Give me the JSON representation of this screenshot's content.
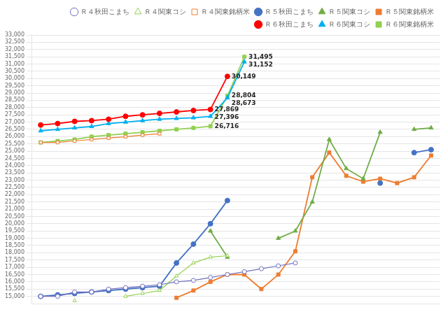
{
  "chart_data": {
    "type": "line",
    "x": [
      0,
      1,
      2,
      3,
      4,
      5,
      6,
      7,
      8,
      9,
      10,
      11,
      12,
      13,
      14,
      15,
      16,
      17,
      18,
      19,
      20,
      21,
      22,
      23
    ],
    "xlim": [
      -0.5,
      23.5
    ],
    "xticks": [],
    "ylim": [
      14500,
      33000
    ],
    "yticks": [
      {
        "value": 15000,
        "label": "15,000"
      },
      {
        "value": 15500,
        "label": "15,500"
      },
      {
        "value": 16000,
        "label": "16,000"
      },
      {
        "value": 16500,
        "label": "16,500"
      },
      {
        "value": 17000,
        "label": "17,000"
      },
      {
        "value": 17500,
        "label": "17,500"
      },
      {
        "value": 18000,
        "label": "18,000"
      },
      {
        "value": 18500,
        "label": "18,500"
      },
      {
        "value": 19000,
        "label": "19,000"
      },
      {
        "value": 19500,
        "label": "19,500"
      },
      {
        "value": 20000,
        "label": "20,000"
      },
      {
        "value": 20500,
        "label": "20,500"
      },
      {
        "value": 21000,
        "label": "21,000"
      },
      {
        "value": 21500,
        "label": "21,500"
      },
      {
        "value": 22000,
        "label": "22,000"
      },
      {
        "value": 22500,
        "label": "22,500"
      },
      {
        "value": 23000,
        "label": "23,000"
      },
      {
        "value": 23500,
        "label": "23,500"
      },
      {
        "value": 24000,
        "label": "24,000"
      },
      {
        "value": 24500,
        "label": "24,500"
      },
      {
        "value": 25000,
        "label": "25,000"
      },
      {
        "value": 25500,
        "label": "25,500"
      },
      {
        "value": 26000,
        "label": "26,000"
      },
      {
        "value": 26500,
        "label": "26,500"
      },
      {
        "value": 27000,
        "label": "27,000"
      },
      {
        "value": 27500,
        "label": "27,500"
      },
      {
        "value": 28000,
        "label": "28,000"
      },
      {
        "value": 28500,
        "label": "28,500"
      },
      {
        "value": 29000,
        "label": "29,000"
      },
      {
        "value": 29500,
        "label": "29,500"
      },
      {
        "value": 30000,
        "label": "30,000"
      },
      {
        "value": 30500,
        "label": "30,500"
      },
      {
        "value": 31000,
        "label": "31,000"
      },
      {
        "value": 31500,
        "label": "31,500"
      },
      {
        "value": 32000,
        "label": "32,000"
      },
      {
        "value": 32500,
        "label": "32,500"
      },
      {
        "value": 33000,
        "label": "33,000"
      }
    ],
    "tick_labels": "y",
    "grid": true,
    "legend": "upper right",
    "series": [
      {
        "name": "Ｒ４秋田こまち",
        "color": "#7070C0",
        "marker": "circle-open",
        "values": [
          15000,
          15000,
          15300,
          15300,
          15500,
          15600,
          15700,
          15800,
          16000,
          16100,
          16300,
          16500,
          16700,
          16900,
          17100,
          17300,
          null,
          null,
          null,
          null,
          null,
          null,
          null,
          null
        ]
      },
      {
        "name": "Ｒ４関東コシ",
        "color": "#92D050",
        "marker": "triangle-open",
        "values": [
          null,
          null,
          14700,
          null,
          null,
          15000,
          15200,
          15400,
          16400,
          17300,
          17700,
          17800,
          null,
          null,
          null,
          null,
          null,
          null,
          null,
          null,
          null,
          null,
          null,
          null
        ]
      },
      {
        "name": "Ｒ４関東銘柄米",
        "color": "#ED7D31",
        "marker": "square-open",
        "values": [
          25600,
          25600,
          25700,
          25800,
          25900,
          26000,
          26100,
          26200,
          null,
          null,
          null,
          null,
          null,
          null,
          null,
          null,
          null,
          null,
          null,
          null,
          null,
          null,
          null,
          null
        ]
      },
      {
        "name": "Ｒ５秋田こまち",
        "color": "#4472C4",
        "marker": "circle",
        "values": [
          15000,
          15100,
          15200,
          15300,
          15400,
          15500,
          15600,
          15700,
          17300,
          18600,
          20000,
          21600,
          null,
          null,
          null,
          null,
          null,
          null,
          null,
          null,
          22800,
          null,
          24900,
          25100
        ]
      },
      {
        "name": "Ｒ５関東コシ",
        "color": "#70AD47",
        "marker": "triangle",
        "values": [
          null,
          null,
          null,
          null,
          null,
          null,
          null,
          null,
          null,
          null,
          19500,
          17700,
          null,
          null,
          19000,
          19500,
          21500,
          25800,
          23800,
          23100,
          26300,
          null,
          26500,
          26600
        ]
      },
      {
        "name": "Ｒ５関東銘柄米",
        "color": "#ED7D31",
        "marker": "square",
        "values": [
          null,
          null,
          null,
          null,
          null,
          null,
          null,
          null,
          14900,
          15400,
          16000,
          16500,
          16500,
          15500,
          16500,
          18100,
          23200,
          24900,
          23300,
          22900,
          23100,
          22800,
          23200,
          24700
        ]
      },
      {
        "name": "Ｒ６秋田こまち",
        "color": "#FF0000",
        "marker": "circle",
        "values": [
          26800,
          26900,
          27050,
          27100,
          27200,
          27400,
          27500,
          27600,
          27700,
          27800,
          27869,
          30149,
          null,
          null,
          null,
          null,
          null,
          null,
          null,
          null,
          null,
          null,
          null,
          null
        ]
      },
      {
        "name": "Ｒ６関東コシ",
        "color": "#00B0F0",
        "marker": "triangle",
        "values": [
          26400,
          26500,
          26600,
          26700,
          26900,
          27000,
          27100,
          27200,
          27250,
          27300,
          27396,
          28673,
          31152,
          null,
          null,
          null,
          null,
          null,
          null,
          null,
          null,
          null,
          null,
          null
        ]
      },
      {
        "name": "Ｒ６関東銘柄米",
        "color": "#92D050",
        "marker": "square",
        "values": [
          25600,
          25700,
          25800,
          26000,
          26100,
          26200,
          26300,
          26400,
          26500,
          26600,
          26716,
          28804,
          31495,
          null,
          null,
          null,
          null,
          null,
          null,
          null,
          null,
          null,
          null,
          null
        ]
      }
    ],
    "annotations": [
      {
        "text": "27,869",
        "x": 10,
        "y": 27869
      },
      {
        "text": "27,396",
        "x": 10,
        "y": 27396
      },
      {
        "text": "26,716",
        "x": 10,
        "y": 26716
      },
      {
        "text": "30,149",
        "x": 11,
        "y": 30149
      },
      {
        "text": "28,804",
        "x": 11,
        "y": 28804
      },
      {
        "text": "28,673",
        "x": 11,
        "y": 28673
      },
      {
        "text": "31,495",
        "x": 12,
        "y": 31495
      },
      {
        "text": "31,152",
        "x": 12,
        "y": 31152
      }
    ]
  }
}
